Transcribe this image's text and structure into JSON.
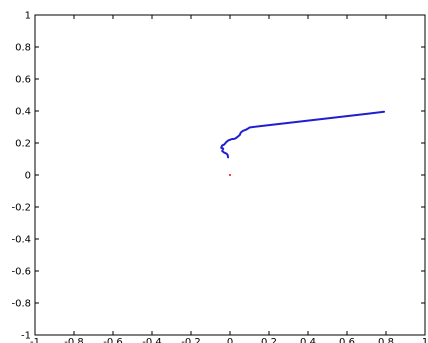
{
  "chart_data": {
    "type": "line",
    "title": "",
    "xlabel": "",
    "ylabel": "",
    "xlim": [
      -1,
      1
    ],
    "ylim": [
      -1,
      1
    ],
    "grid": false,
    "x_ticks": [
      -1,
      -0.8,
      -0.6,
      -0.4,
      -0.2,
      0,
      0.2,
      0.4,
      0.6,
      0.8,
      1
    ],
    "x_tick_labels": [
      "-1",
      "-0.8",
      "-0.6",
      "-0.4",
      "-0.2",
      "0",
      "0.2",
      "0.4",
      "0.6",
      "0.8",
      "1"
    ],
    "y_ticks": [
      1,
      0.8,
      0.6,
      0.4,
      0.2,
      0,
      -0.2,
      -0.4,
      -0.6,
      -0.8,
      -1
    ],
    "y_tick_labels": [
      "1",
      "0.8",
      "0.6",
      "0.4",
      "0.2",
      "0",
      "-0.2",
      "-0.4",
      "-0.6",
      "-0.8",
      "-1"
    ],
    "series": [
      {
        "color": "#1f1fd0",
        "points": [
          [
            -0.01,
            0.11
          ],
          [
            -0.012,
            0.125
          ],
          [
            -0.015,
            0.13
          ],
          [
            -0.02,
            0.135
          ],
          [
            -0.03,
            0.14
          ],
          [
            -0.04,
            0.15
          ],
          [
            -0.035,
            0.165
          ],
          [
            -0.045,
            0.17
          ],
          [
            -0.04,
            0.185
          ],
          [
            -0.03,
            0.19
          ],
          [
            -0.02,
            0.205
          ],
          [
            -0.01,
            0.215
          ],
          [
            0.0,
            0.22
          ],
          [
            0.01,
            0.225
          ],
          [
            0.02,
            0.225
          ],
          [
            0.03,
            0.23
          ],
          [
            0.04,
            0.24
          ],
          [
            0.05,
            0.25
          ],
          [
            0.055,
            0.265
          ],
          [
            0.065,
            0.275
          ],
          [
            0.075,
            0.28
          ],
          [
            0.085,
            0.285
          ],
          [
            0.095,
            0.292
          ],
          [
            0.1,
            0.297
          ],
          [
            0.2,
            0.312
          ],
          [
            0.3,
            0.326
          ],
          [
            0.4,
            0.34
          ],
          [
            0.5,
            0.354
          ],
          [
            0.6,
            0.368
          ],
          [
            0.7,
            0.382
          ],
          [
            0.79,
            0.395
          ]
        ]
      }
    ],
    "markers": [
      {
        "x": 0.0,
        "y": 0.0,
        "color": "#ff0000"
      }
    ]
  }
}
